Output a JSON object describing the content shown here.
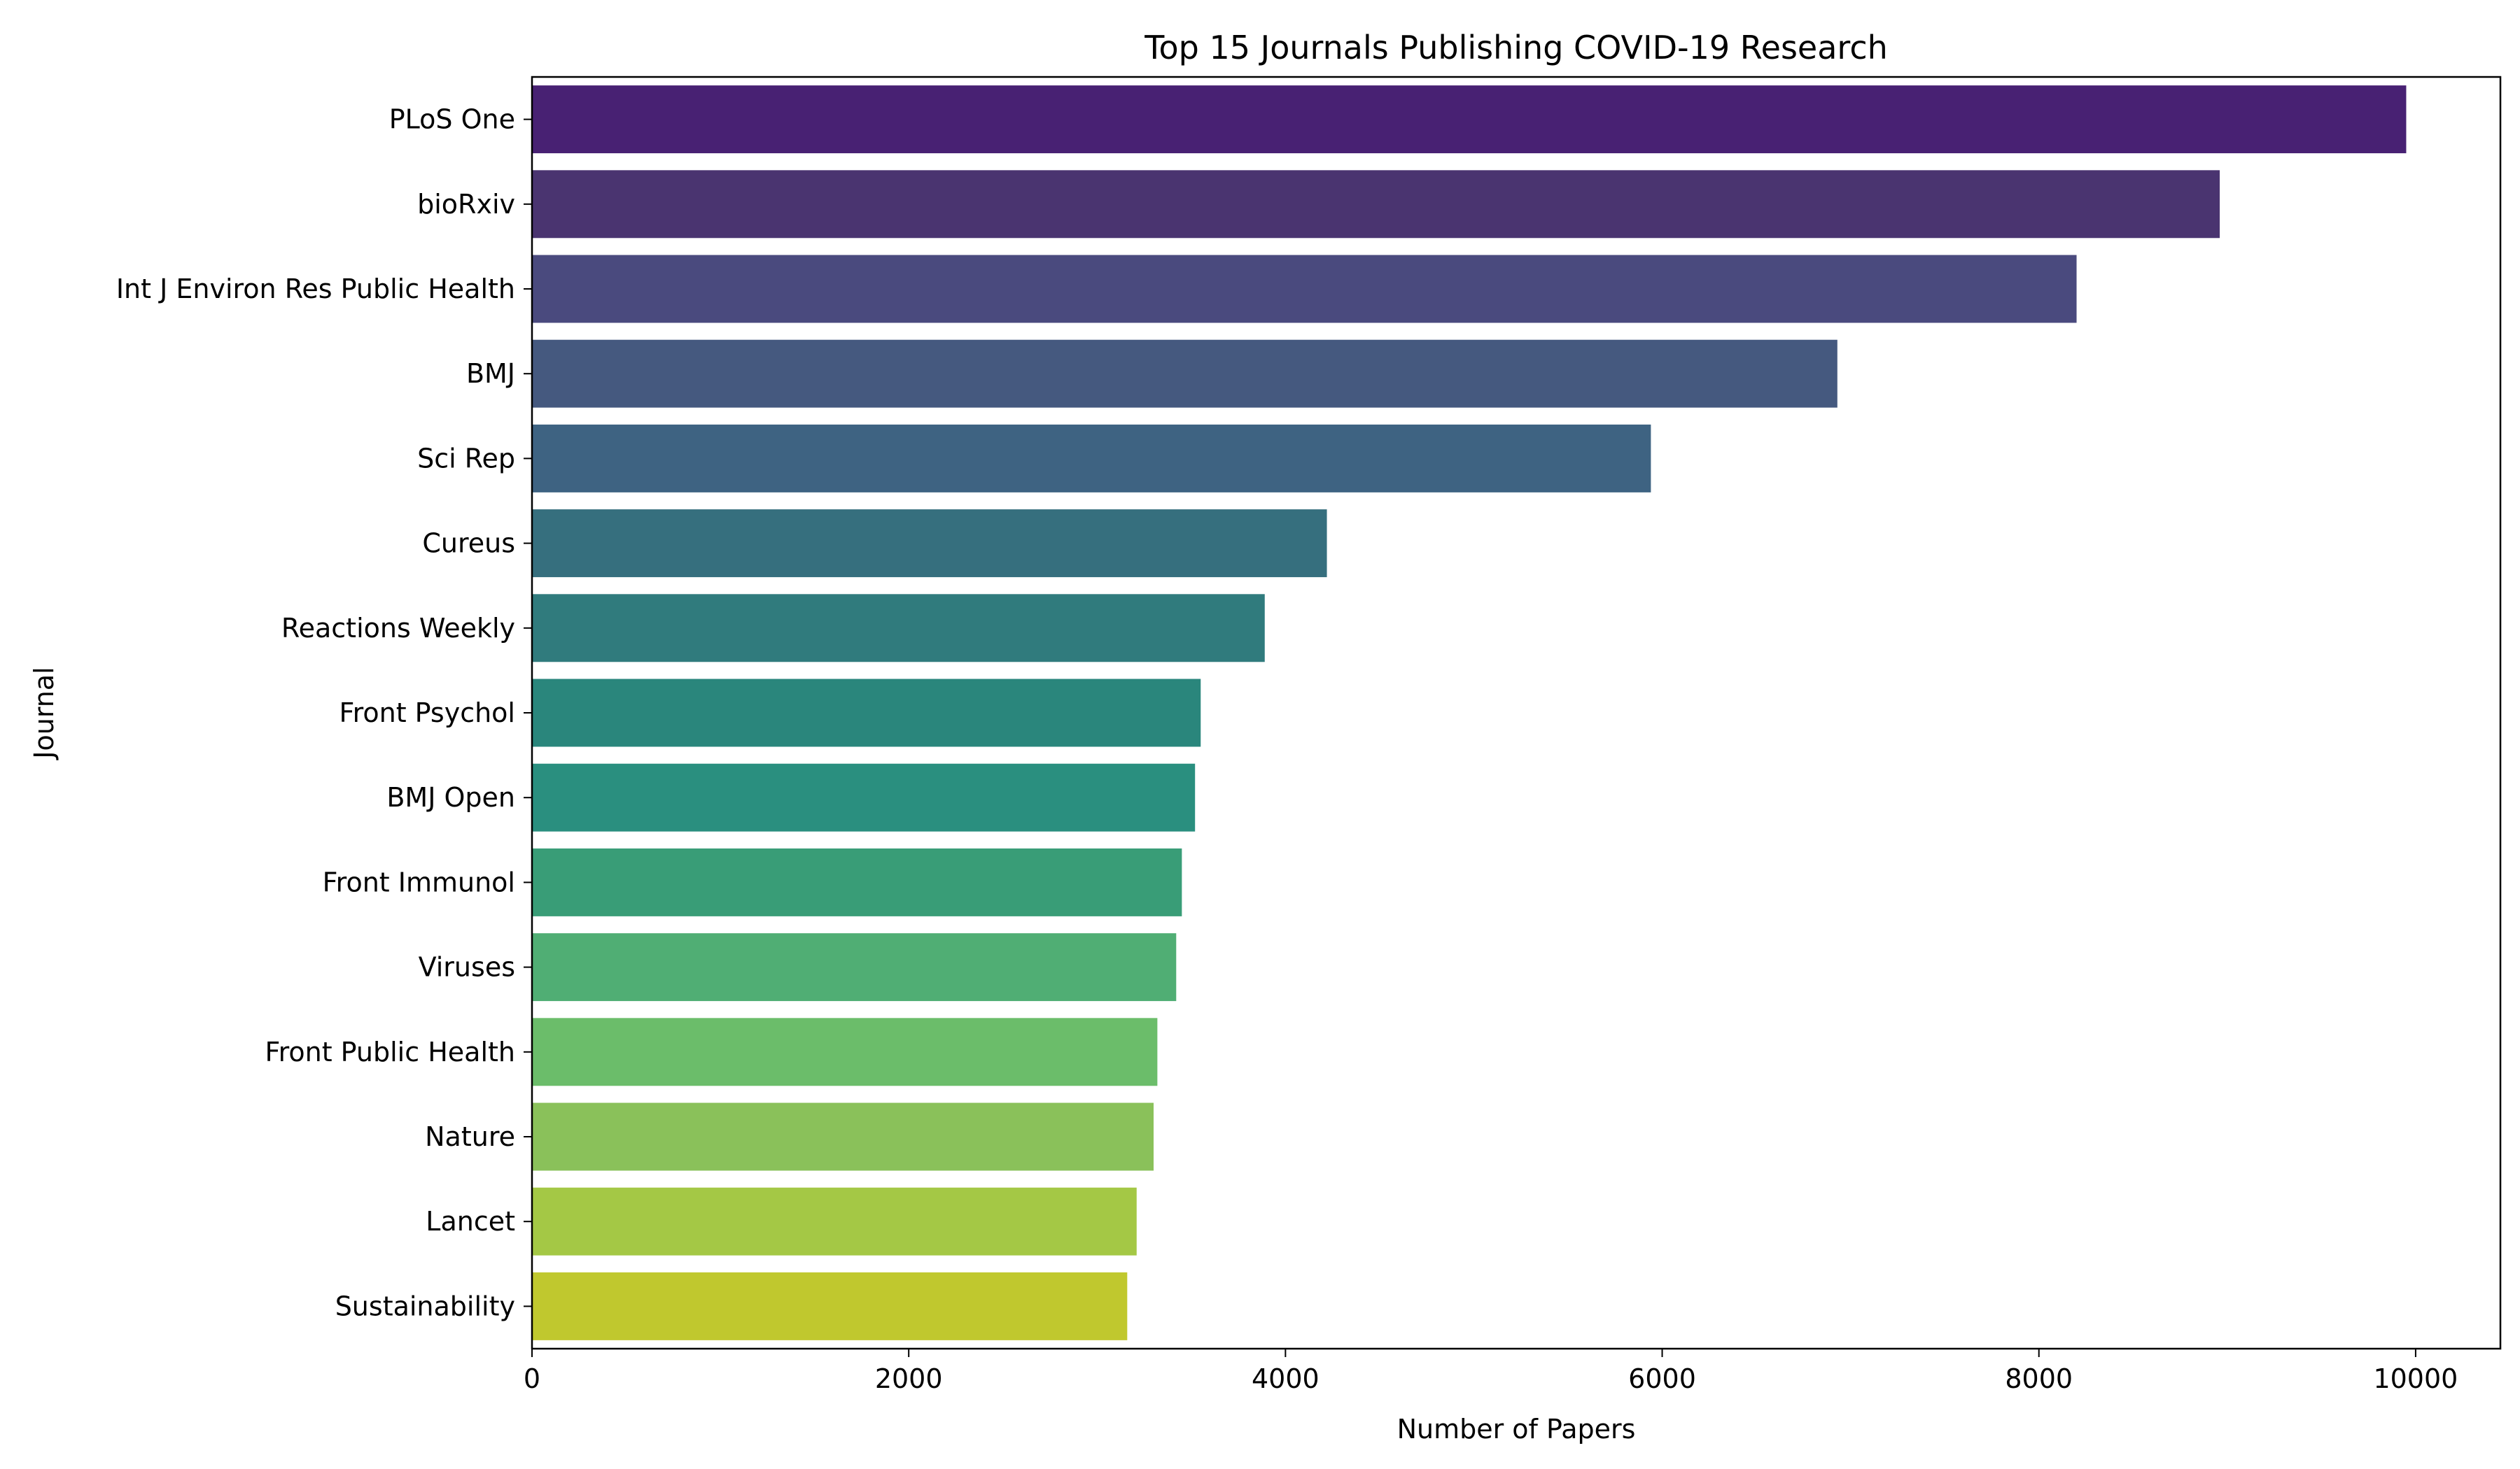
{
  "chart_data": {
    "type": "bar",
    "orientation": "horizontal",
    "title": "Top 15 Journals Publishing COVID-19 Research",
    "xlabel": "Number of Papers",
    "ylabel": "Journal",
    "xlim": [
      0,
      10450
    ],
    "xticks": [
      0,
      2000,
      4000,
      6000,
      8000,
      10000
    ],
    "grid": false,
    "categories": [
      "PLoS One",
      "bioRxiv",
      "Int J Environ Res Public Health",
      "BMJ",
      "Sci Rep",
      "Cureus",
      "Reactions Weekly",
      "Front Psychol",
      "BMJ Open",
      "Front Immunol",
      "Viruses",
      "Front Public Health",
      "Nature",
      "Lancet",
      "Sustainability"
    ],
    "values": [
      9950,
      8960,
      8200,
      6930,
      5940,
      4220,
      3890,
      3550,
      3520,
      3450,
      3420,
      3320,
      3300,
      3210,
      3160
    ],
    "colors": [
      "#482173",
      "#4a3470",
      "#4a4a7e",
      "#45597f",
      "#3e6382",
      "#366f7e",
      "#307b7d",
      "#2a867c",
      "#2a8f7f",
      "#399d77",
      "#50ae74",
      "#6bbd6a",
      "#8ac15a",
      "#a4c845",
      "#c0c82e"
    ]
  }
}
